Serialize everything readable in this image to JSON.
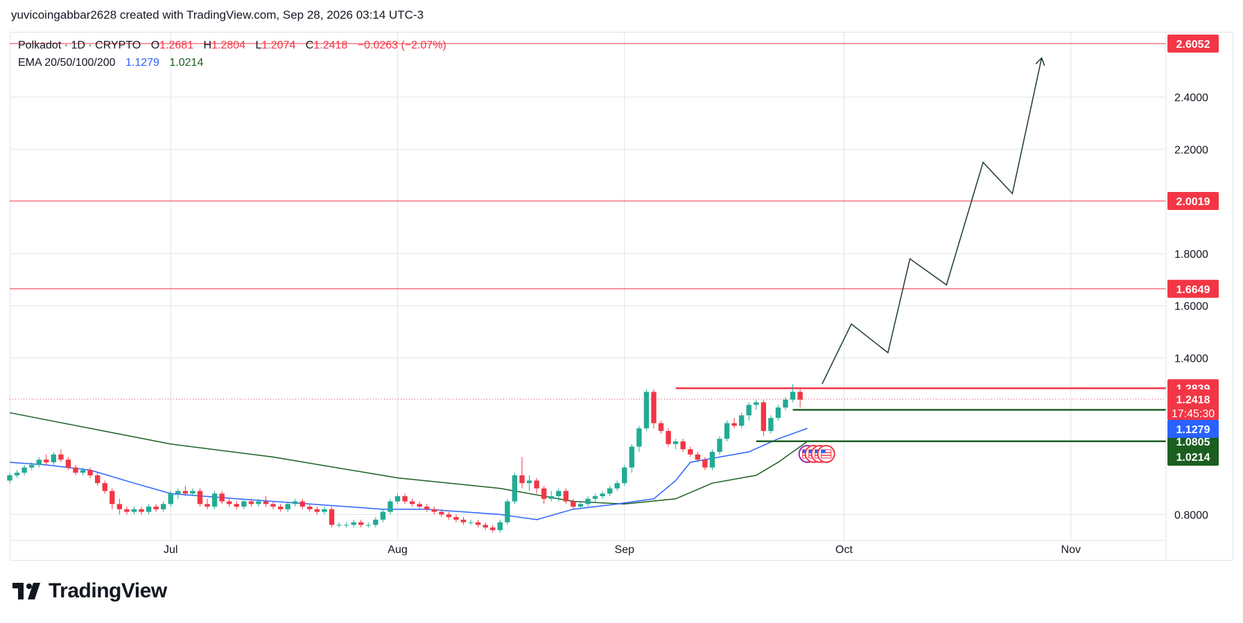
{
  "header": {
    "credit": "yuvicoingabbar2628 created with TradingView.com, Sep 28, 2026 03:14 UTC-3"
  },
  "legend": {
    "symbol": "Polkadot · 1D · CRYPTO",
    "o_label": "O",
    "o_value": "1.2681",
    "h_label": "H",
    "h_value": "1.2804",
    "l_label": "L",
    "l_value": "1.2074",
    "c_label": "C",
    "c_value": "1.2418",
    "change": "−0.0263 (−2.07%)",
    "ema_label": "EMA 20/50/100/200",
    "ema_20": "1.1279",
    "ema_50": "1.0214"
  },
  "footer": {
    "brand": "TradingView"
  },
  "colors": {
    "up": "#22ab94",
    "down": "#f23645",
    "ema20": "#2962ff",
    "ema50": "#1b5e20",
    "grid": "#e0e3eb",
    "projection": "#1b3a2a"
  },
  "chart_data": {
    "type": "candlestick",
    "x_range": [
      "2026-06-09",
      "2026-11-14"
    ],
    "y_range": [
      0.7,
      2.65
    ],
    "x_ticks": [
      {
        "date": "2026-07-01",
        "label": "Jul"
      },
      {
        "date": "2026-08-01",
        "label": "Aug"
      },
      {
        "date": "2026-09-01",
        "label": "Sep"
      },
      {
        "date": "2026-10-01",
        "label": "Oct"
      },
      {
        "date": "2026-11-01",
        "label": "Nov"
      }
    ],
    "y_ticks": [
      "0.8000",
      "1.4000",
      "1.6000",
      "1.8000",
      "2.2000",
      "2.4000"
    ],
    "start_date": "2026-06-09",
    "candles": [
      [
        0.93,
        0.96,
        0.92,
        0.95
      ],
      [
        0.95,
        0.97,
        0.94,
        0.96
      ],
      [
        0.96,
        0.99,
        0.95,
        0.98
      ],
      [
        0.98,
        1.0,
        0.97,
        0.99
      ],
      [
        0.99,
        1.02,
        0.98,
        1.01
      ],
      [
        1.01,
        1.03,
        0.99,
        1.0
      ],
      [
        1.0,
        1.04,
        0.99,
        1.03
      ],
      [
        1.03,
        1.05,
        1.0,
        1.01
      ],
      [
        1.01,
        1.02,
        0.97,
        0.98
      ],
      [
        0.98,
        0.99,
        0.95,
        0.96
      ],
      [
        0.96,
        0.98,
        0.95,
        0.97
      ],
      [
        0.97,
        0.98,
        0.94,
        0.95
      ],
      [
        0.95,
        0.96,
        0.91,
        0.92
      ],
      [
        0.92,
        0.93,
        0.88,
        0.89
      ],
      [
        0.89,
        0.9,
        0.82,
        0.84
      ],
      [
        0.84,
        0.86,
        0.8,
        0.82
      ],
      [
        0.82,
        0.83,
        0.8,
        0.81
      ],
      [
        0.81,
        0.83,
        0.8,
        0.82
      ],
      [
        0.82,
        0.83,
        0.8,
        0.81
      ],
      [
        0.81,
        0.84,
        0.8,
        0.83
      ],
      [
        0.83,
        0.84,
        0.81,
        0.82
      ],
      [
        0.82,
        0.85,
        0.81,
        0.84
      ],
      [
        0.84,
        0.89,
        0.83,
        0.88
      ],
      [
        0.88,
        0.9,
        0.86,
        0.89
      ],
      [
        0.89,
        0.91,
        0.87,
        0.88
      ],
      [
        0.88,
        0.9,
        0.87,
        0.89
      ],
      [
        0.89,
        0.9,
        0.83,
        0.84
      ],
      [
        0.84,
        0.86,
        0.82,
        0.83
      ],
      [
        0.83,
        0.89,
        0.82,
        0.88
      ],
      [
        0.88,
        0.89,
        0.84,
        0.85
      ],
      [
        0.85,
        0.86,
        0.83,
        0.84
      ],
      [
        0.84,
        0.85,
        0.82,
        0.83
      ],
      [
        0.83,
        0.86,
        0.82,
        0.85
      ],
      [
        0.85,
        0.86,
        0.83,
        0.84
      ],
      [
        0.84,
        0.86,
        0.83,
        0.85
      ],
      [
        0.85,
        0.87,
        0.83,
        0.84
      ],
      [
        0.84,
        0.85,
        0.82,
        0.83
      ],
      [
        0.83,
        0.84,
        0.81,
        0.82
      ],
      [
        0.82,
        0.85,
        0.81,
        0.84
      ],
      [
        0.84,
        0.86,
        0.83,
        0.85
      ],
      [
        0.85,
        0.86,
        0.82,
        0.83
      ],
      [
        0.83,
        0.84,
        0.81,
        0.82
      ],
      [
        0.82,
        0.83,
        0.8,
        0.81
      ],
      [
        0.81,
        0.83,
        0.8,
        0.82
      ],
      [
        0.82,
        0.83,
        0.75,
        0.76
      ],
      [
        0.76,
        0.77,
        0.75,
        0.76
      ],
      [
        0.76,
        0.77,
        0.75,
        0.76
      ],
      [
        0.76,
        0.78,
        0.75,
        0.77
      ],
      [
        0.77,
        0.78,
        0.75,
        0.76
      ],
      [
        0.76,
        0.77,
        0.75,
        0.76
      ],
      [
        0.76,
        0.79,
        0.75,
        0.78
      ],
      [
        0.78,
        0.82,
        0.77,
        0.81
      ],
      [
        0.81,
        0.86,
        0.8,
        0.85
      ],
      [
        0.85,
        0.88,
        0.84,
        0.87
      ],
      [
        0.87,
        0.88,
        0.84,
        0.85
      ],
      [
        0.85,
        0.86,
        0.83,
        0.84
      ],
      [
        0.84,
        0.85,
        0.82,
        0.83
      ],
      [
        0.83,
        0.84,
        0.81,
        0.82
      ],
      [
        0.82,
        0.83,
        0.8,
        0.81
      ],
      [
        0.81,
        0.82,
        0.79,
        0.8
      ],
      [
        0.8,
        0.81,
        0.78,
        0.79
      ],
      [
        0.79,
        0.8,
        0.77,
        0.78
      ],
      [
        0.78,
        0.79,
        0.76,
        0.77
      ],
      [
        0.77,
        0.78,
        0.76,
        0.77
      ],
      [
        0.77,
        0.78,
        0.75,
        0.76
      ],
      [
        0.76,
        0.77,
        0.74,
        0.75
      ],
      [
        0.75,
        0.76,
        0.73,
        0.74
      ],
      [
        0.74,
        0.78,
        0.73,
        0.77
      ],
      [
        0.77,
        0.86,
        0.76,
        0.85
      ],
      [
        0.85,
        0.96,
        0.84,
        0.95
      ],
      [
        0.95,
        1.02,
        0.9,
        0.92
      ],
      [
        0.92,
        0.95,
        0.89,
        0.93
      ],
      [
        0.93,
        0.94,
        0.88,
        0.9
      ],
      [
        0.9,
        0.91,
        0.84,
        0.86
      ],
      [
        0.86,
        0.89,
        0.85,
        0.87
      ],
      [
        0.87,
        0.9,
        0.85,
        0.89
      ],
      [
        0.89,
        0.9,
        0.84,
        0.85
      ],
      [
        0.85,
        0.86,
        0.82,
        0.83
      ],
      [
        0.83,
        0.85,
        0.82,
        0.84
      ],
      [
        0.84,
        0.87,
        0.83,
        0.86
      ],
      [
        0.86,
        0.88,
        0.85,
        0.87
      ],
      [
        0.87,
        0.89,
        0.86,
        0.88
      ],
      [
        0.88,
        0.91,
        0.87,
        0.9
      ],
      [
        0.9,
        0.93,
        0.89,
        0.92
      ],
      [
        0.92,
        0.99,
        0.91,
        0.98
      ],
      [
        0.98,
        1.07,
        0.96,
        1.06
      ],
      [
        1.06,
        1.14,
        1.04,
        1.13
      ],
      [
        1.13,
        1.28,
        1.12,
        1.27
      ],
      [
        1.27,
        1.28,
        1.13,
        1.15
      ],
      [
        1.15,
        1.16,
        1.11,
        1.12
      ],
      [
        1.12,
        1.13,
        1.06,
        1.07
      ],
      [
        1.07,
        1.09,
        1.05,
        1.08
      ],
      [
        1.08,
        1.09,
        1.04,
        1.05
      ],
      [
        1.05,
        1.06,
        1.02,
        1.03
      ],
      [
        1.03,
        1.04,
        1.0,
        1.01
      ],
      [
        1.01,
        1.02,
        0.97,
        0.98
      ],
      [
        0.98,
        1.05,
        0.97,
        1.04
      ],
      [
        1.04,
        1.1,
        1.03,
        1.09
      ],
      [
        1.09,
        1.16,
        1.08,
        1.15
      ],
      [
        1.15,
        1.17,
        1.13,
        1.14
      ],
      [
        1.14,
        1.19,
        1.13,
        1.18
      ],
      [
        1.18,
        1.23,
        1.16,
        1.22
      ],
      [
        1.22,
        1.24,
        1.2,
        1.23
      ],
      [
        1.23,
        1.24,
        1.1,
        1.12
      ],
      [
        1.12,
        1.18,
        1.11,
        1.17
      ],
      [
        1.17,
        1.22,
        1.16,
        1.21
      ],
      [
        1.21,
        1.25,
        1.2,
        1.24
      ],
      [
        1.24,
        1.3,
        1.23,
        1.27
      ],
      [
        1.27,
        1.28,
        1.21,
        1.24
      ]
    ],
    "ema_20": [
      [
        "2026-06-09",
        1.0
      ],
      [
        "2026-06-14",
        0.99
      ],
      [
        "2026-06-20",
        0.97
      ],
      [
        "2026-06-26",
        0.92
      ],
      [
        "2026-07-01",
        0.88
      ],
      [
        "2026-07-10",
        0.86
      ],
      [
        "2026-07-20",
        0.84
      ],
      [
        "2026-07-30",
        0.82
      ],
      [
        "2026-08-05",
        0.82
      ],
      [
        "2026-08-15",
        0.8
      ],
      [
        "2026-08-20",
        0.78
      ],
      [
        "2026-08-25",
        0.82
      ],
      [
        "2026-08-31",
        0.84
      ],
      [
        "2026-09-05",
        0.86
      ],
      [
        "2026-09-08",
        0.93
      ],
      [
        "2026-09-10",
        1.0
      ],
      [
        "2026-09-14",
        1.02
      ],
      [
        "2026-09-18",
        1.04
      ],
      [
        "2026-09-22",
        1.09
      ],
      [
        "2026-09-26",
        1.13
      ]
    ],
    "ema_50": [
      [
        "2026-06-09",
        1.19
      ],
      [
        "2026-06-20",
        1.13
      ],
      [
        "2026-07-01",
        1.07
      ],
      [
        "2026-07-15",
        1.02
      ],
      [
        "2026-08-01",
        0.94
      ],
      [
        "2026-08-15",
        0.9
      ],
      [
        "2026-08-25",
        0.85
      ],
      [
        "2026-09-01",
        0.84
      ],
      [
        "2026-09-08",
        0.86
      ],
      [
        "2026-09-13",
        0.92
      ],
      [
        "2026-09-19",
        0.95
      ],
      [
        "2026-09-22",
        1.0
      ],
      [
        "2026-09-26",
        1.08
      ]
    ],
    "horizontal_lines": [
      {
        "value": 2.6052,
        "label": "2.6052",
        "color": "#f23645",
        "start": "2026-06-09"
      },
      {
        "value": 2.0019,
        "label": "2.0019",
        "color": "#f23645",
        "start": "2026-06-09"
      },
      {
        "value": 1.6649,
        "label": "1.6649",
        "color": "#f23645",
        "start": "2026-06-09"
      },
      {
        "value": 1.2839,
        "label": "1.2839",
        "color": "#f23645",
        "start": "2026-09-08",
        "thick": true
      },
      {
        "value": 1.2012,
        "label": "1.2012",
        "color": "#1b5e20",
        "start": "2026-09-24",
        "thick": true
      },
      {
        "value": 1.0805,
        "label": "1.0805",
        "color": "#1b5e20",
        "start": "2026-09-19",
        "thick": true
      }
    ],
    "price_labels": [
      {
        "value": 1.2418,
        "label": "1.2418",
        "sub": "17:45:30",
        "color": "#f23645"
      },
      {
        "value": 1.1279,
        "label": "1.1279",
        "color": "#2962ff"
      },
      {
        "value": 1.0214,
        "label": "1.0214",
        "color": "#1b5e20"
      }
    ],
    "projection": [
      [
        "2026-09-28",
        1.3
      ],
      [
        "2026-10-02",
        1.53
      ],
      [
        "2026-10-07",
        1.42
      ],
      [
        "2026-10-10",
        1.78
      ],
      [
        "2026-10-15",
        1.68
      ],
      [
        "2026-10-20",
        2.15
      ],
      [
        "2026-10-24",
        2.03
      ],
      [
        "2026-10-28",
        2.55
      ]
    ]
  }
}
